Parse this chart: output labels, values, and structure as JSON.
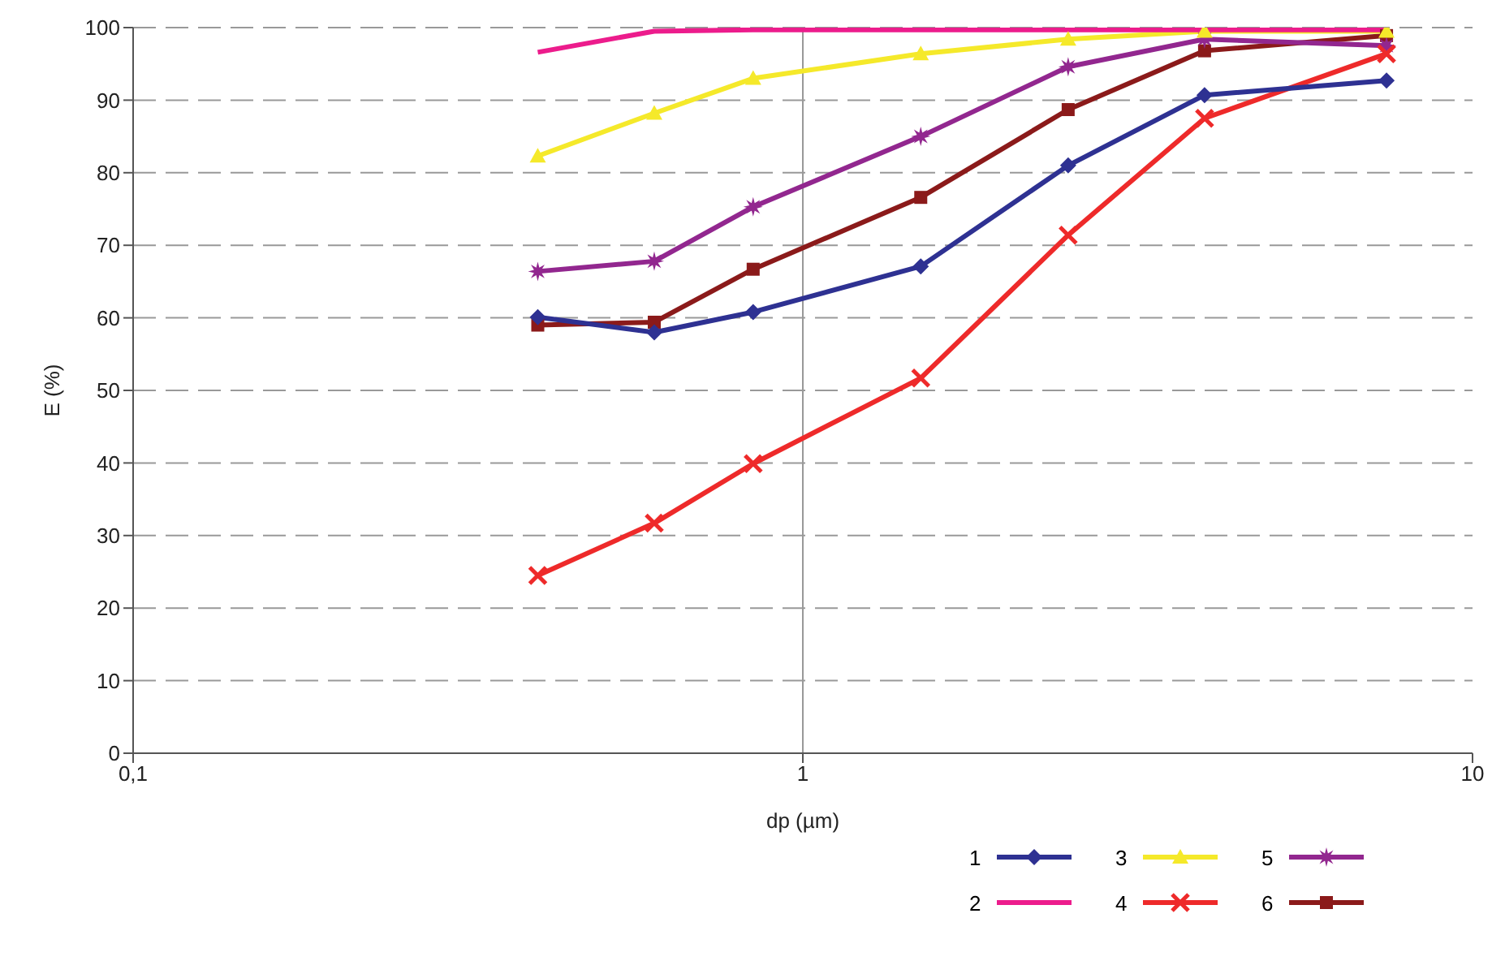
{
  "chart_data": {
    "type": "line",
    "xlabel": "dp (µm)",
    "ylabel": "E (%)",
    "log": "x",
    "x": [
      0.402,
      0.6,
      0.843,
      1.5,
      2.49,
      3.98,
      7.44
    ],
    "xlim": [
      0.1,
      10
    ],
    "xticks": [
      {
        "value": 0.1,
        "label": "0,1"
      },
      1,
      10
    ],
    "ylim": [
      0,
      100
    ],
    "yticks": [
      0,
      10,
      20,
      30,
      40,
      50,
      60,
      70,
      80,
      90,
      100
    ],
    "grid": "y",
    "legend": "bottom right",
    "ref_lines": [
      {
        "axis": "x",
        "value": 1,
        "color": "#999999"
      }
    ],
    "series": [
      {
        "name": "1",
        "color": "#2e3192",
        "marker": "diamond",
        "values": [
          60.1,
          58.0,
          60.8,
          67.1,
          81.0,
          90.7,
          92.7
        ]
      },
      {
        "name": "2",
        "color": "#ec1c8c",
        "marker": "none",
        "values": [
          96.6,
          99.5,
          99.7,
          99.7,
          99.7,
          99.7,
          99.7
        ]
      },
      {
        "name": "3",
        "color": "#f5e92a",
        "marker": "triangle",
        "values": [
          82.3,
          88.2,
          93.0,
          96.4,
          98.4,
          99.5,
          99.5
        ]
      },
      {
        "name": "4",
        "color": "#ee2a2a",
        "marker": "cross",
        "values": [
          24.5,
          31.7,
          39.9,
          51.7,
          71.4,
          87.5,
          96.4
        ]
      },
      {
        "name": "5",
        "color": "#92278f",
        "marker": "star",
        "values": [
          66.4,
          67.8,
          75.3,
          85.0,
          94.6,
          98.4,
          97.5
        ]
      },
      {
        "name": "6",
        "color": "#8b1a1a",
        "marker": "square",
        "values": [
          59.0,
          59.4,
          66.7,
          76.6,
          88.7,
          96.8,
          98.9
        ]
      }
    ]
  }
}
